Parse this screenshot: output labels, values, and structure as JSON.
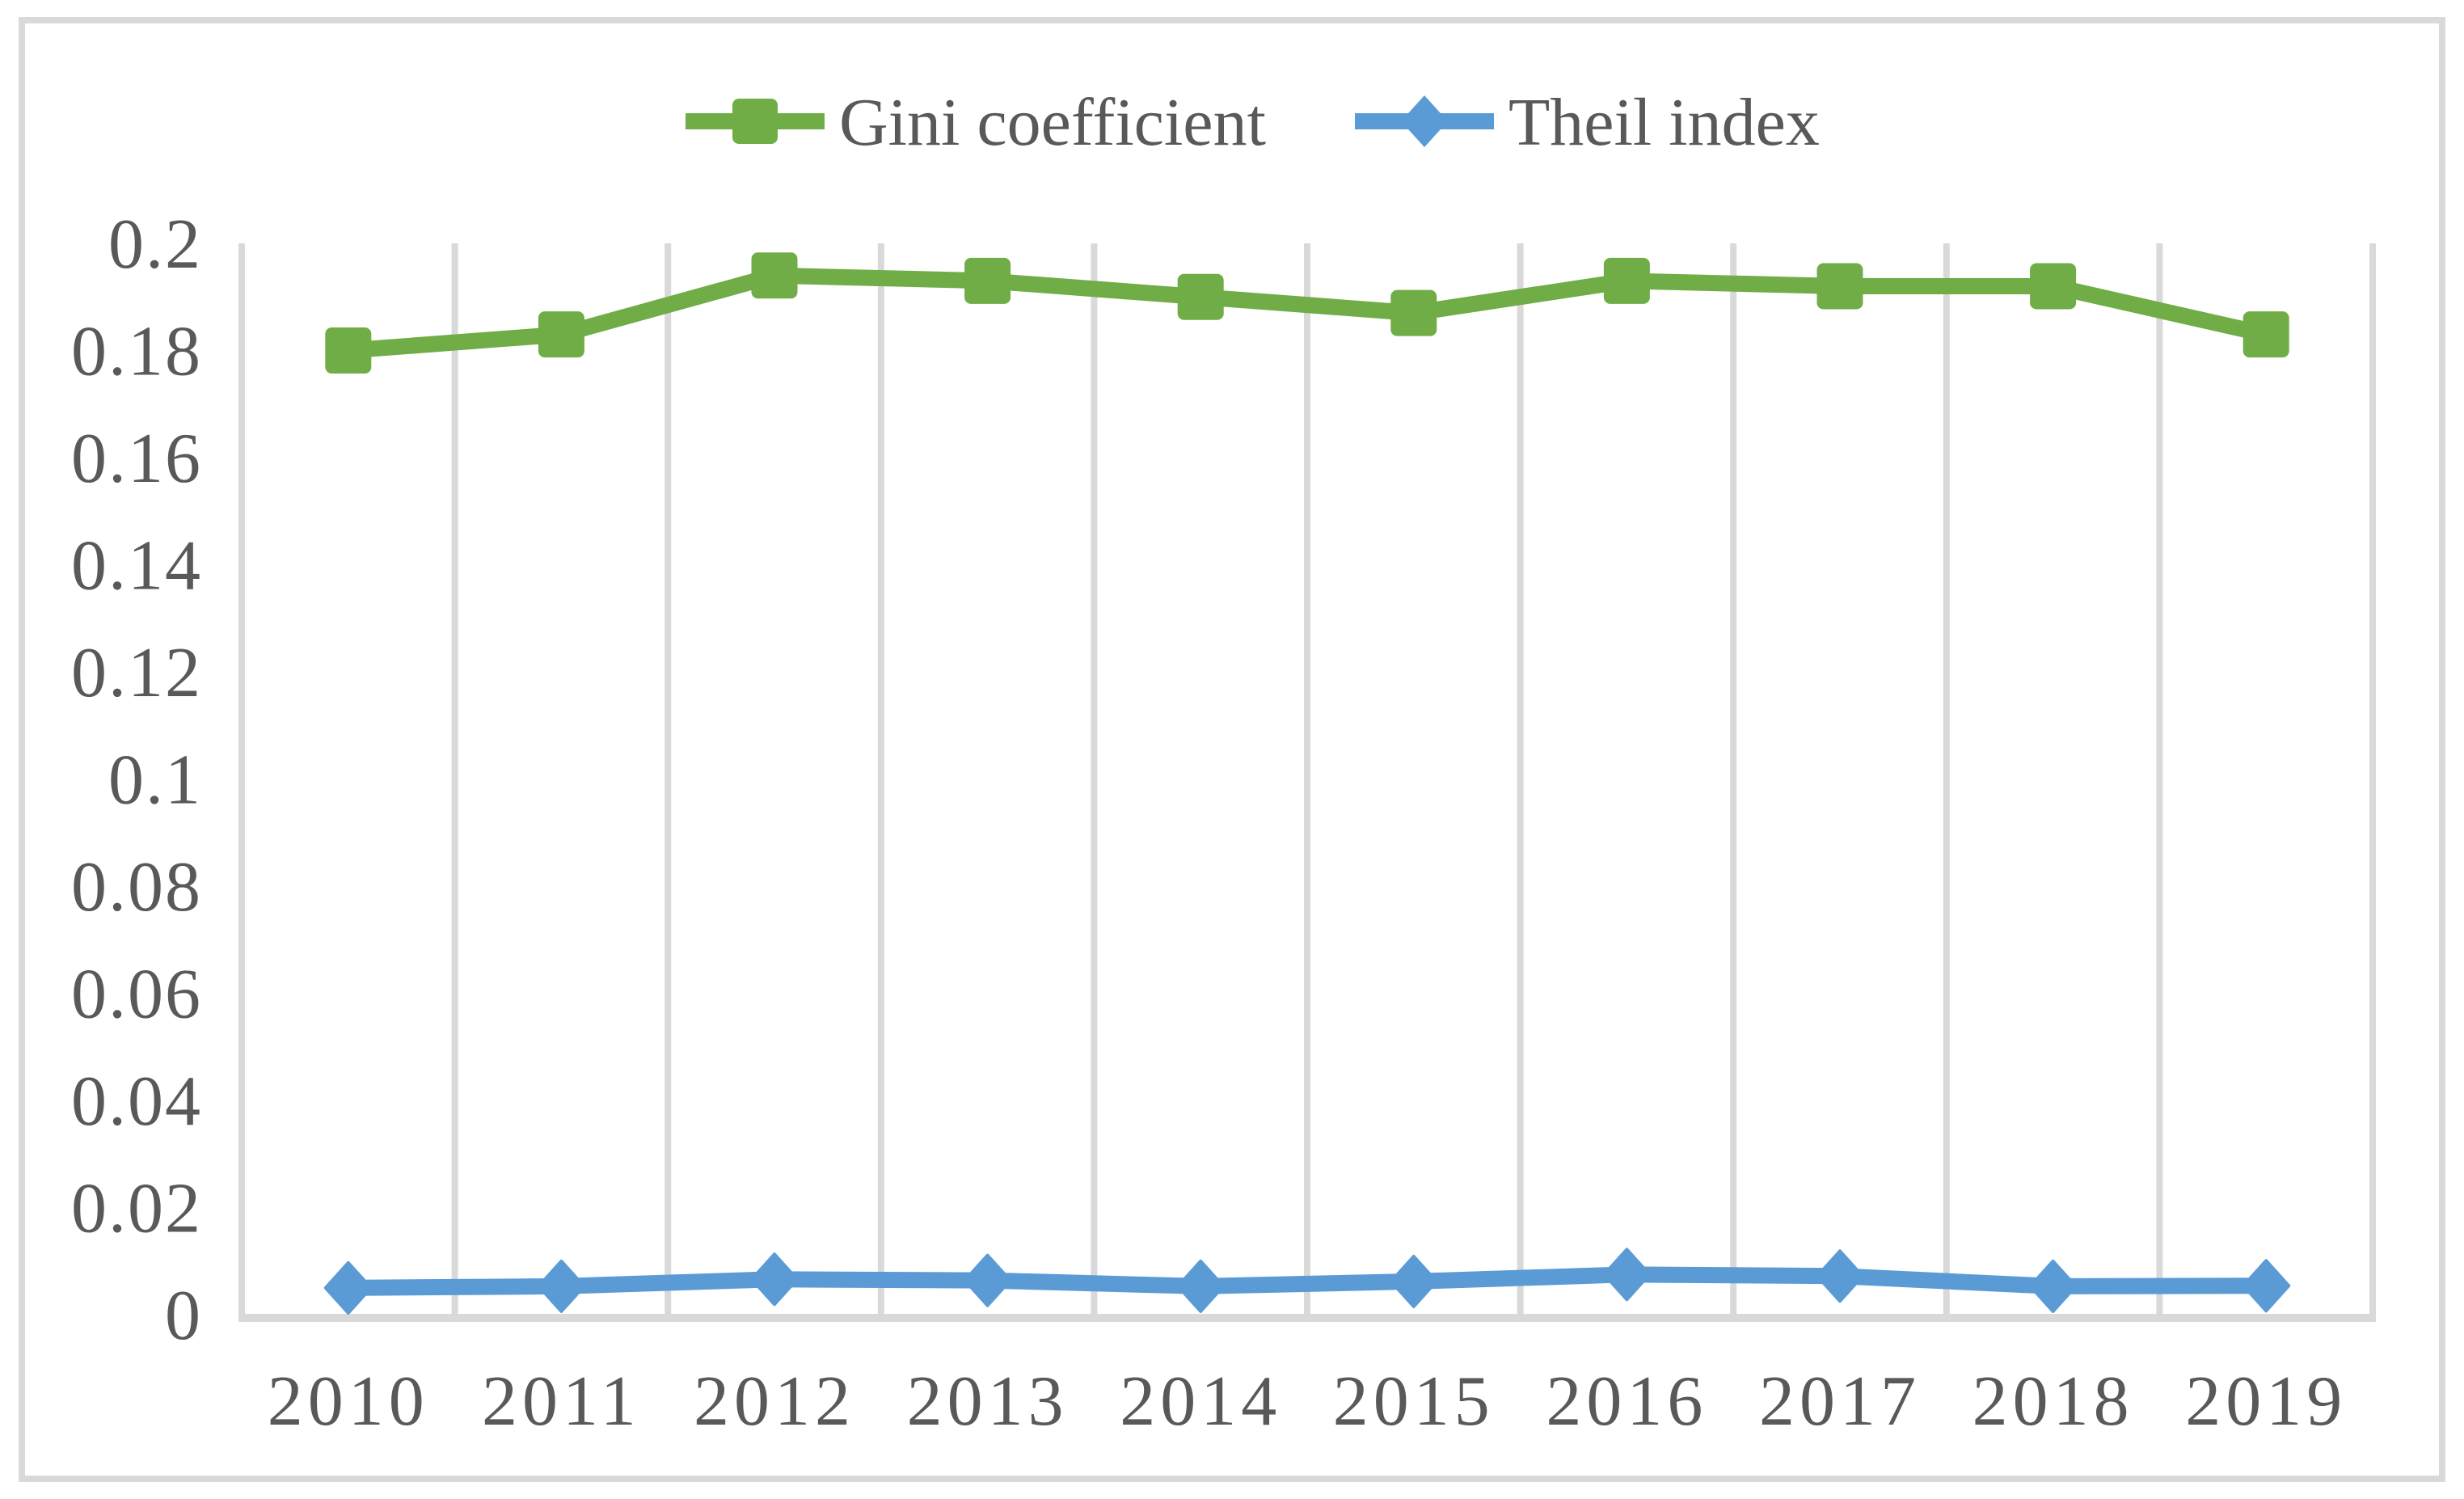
{
  "chart_data": {
    "type": "line",
    "title": "",
    "xlabel": "",
    "ylabel": "",
    "categories": [
      "2010",
      "2011",
      "2012",
      "2013",
      "2014",
      "2015",
      "2016",
      "2017",
      "2018",
      "2019"
    ],
    "series": [
      {
        "name": "Gini coefficient",
        "color": "#70AD47",
        "marker": "square",
        "values": [
          0.18,
          0.183,
          0.194,
          0.193,
          0.19,
          0.187,
          0.193,
          0.192,
          0.192,
          0.183
        ]
      },
      {
        "name": "Theil index",
        "color": "#5B9BD5",
        "marker": "diamond",
        "values": [
          0.005,
          0.0053,
          0.0066,
          0.0064,
          0.0053,
          0.0062,
          0.0075,
          0.0072,
          0.0053,
          0.0054
        ]
      }
    ],
    "ylim": [
      0,
      0.2
    ],
    "y_ticks": [
      "0",
      "0.02",
      "0.04",
      "0.06",
      "0.08",
      "0.1",
      "0.12",
      "0.14",
      "0.16",
      "0.18",
      "0.2"
    ],
    "grid": "vertical-only",
    "legend_position": "top-center"
  },
  "colors": {
    "background": "#FFFFFF",
    "grid": "#D9D9D9",
    "axis": "#D9D9D9",
    "frame_border": "#D9D9D9",
    "text": "#595959",
    "gini": "#70AD47",
    "theil": "#5B9BD5"
  }
}
